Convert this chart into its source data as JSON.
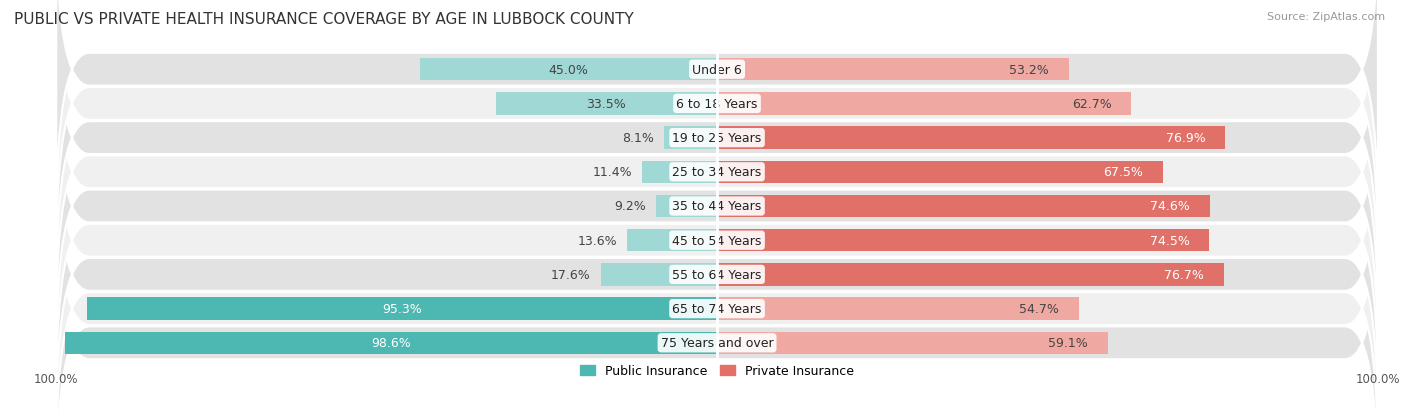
{
  "title": "PUBLIC VS PRIVATE HEALTH INSURANCE COVERAGE BY AGE IN LUBBOCK COUNTY",
  "source": "Source: ZipAtlas.com",
  "categories": [
    "Under 6",
    "6 to 18 Years",
    "19 to 25 Years",
    "25 to 34 Years",
    "35 to 44 Years",
    "45 to 54 Years",
    "55 to 64 Years",
    "65 to 74 Years",
    "75 Years and over"
  ],
  "public_values": [
    45.0,
    33.5,
    8.1,
    11.4,
    9.2,
    13.6,
    17.6,
    95.3,
    98.6
  ],
  "private_values": [
    53.2,
    62.7,
    76.9,
    67.5,
    74.6,
    74.5,
    76.7,
    54.7,
    59.1
  ],
  "public_color_dark": "#4db8b2",
  "public_color_light": "#a0d8d6",
  "private_color_dark": "#e07068",
  "private_color_light": "#f0a8a2",
  "row_bg_light": "#f0f0f0",
  "row_bg_dark": "#e2e2e2",
  "max_value": 100.0,
  "label_fontsize": 9,
  "title_fontsize": 11,
  "source_fontsize": 8,
  "legend_fontsize": 9,
  "axis_label_fontsize": 8.5,
  "pub_dark_threshold": 50,
  "priv_dark_threshold": 63
}
